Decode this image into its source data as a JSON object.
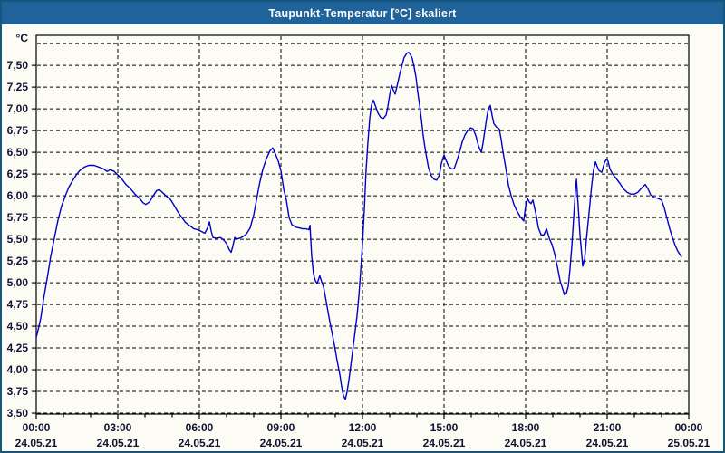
{
  "window": {
    "title": "Taupunkt-Temperatur [°C] skaliert"
  },
  "colors": {
    "titlebar_bg": "#20639a",
    "window_border": "#15567f",
    "window_bg": "#fcfcf4",
    "plot_border": "#000000",
    "gridline": "#000000",
    "axis_text": "#101433",
    "line_color": "#0000c8"
  },
  "chart_data": {
    "type": "line",
    "title": "Taupunkt-Temperatur [°C] skaliert",
    "ylabel": "°C",
    "xlabel": "",
    "legend": "none",
    "grid": "dashed",
    "ylim": [
      3.49,
      7.845
    ],
    "xlim_hours": [
      0,
      24
    ],
    "y_axis": {
      "unit_label": "°C",
      "tick_labels": [
        {
          "value": 3.5,
          "label": "3,50"
        },
        {
          "value": 3.75,
          "label": "3,75"
        },
        {
          "value": 4.0,
          "label": "4,00"
        },
        {
          "value": 4.25,
          "label": "4,25"
        },
        {
          "value": 4.5,
          "label": "4,50"
        },
        {
          "value": 4.75,
          "label": "4,75"
        },
        {
          "value": 5.0,
          "label": "5,00"
        },
        {
          "value": 5.25,
          "label": "5,25"
        },
        {
          "value": 5.5,
          "label": "5,50"
        },
        {
          "value": 5.75,
          "label": "5,75"
        },
        {
          "value": 6.0,
          "label": "6,00"
        },
        {
          "value": 6.25,
          "label": "6,25"
        },
        {
          "value": 6.5,
          "label": "6,50"
        },
        {
          "value": 6.75,
          "label": "6,75"
        },
        {
          "value": 7.0,
          "label": "7,00"
        },
        {
          "value": 7.25,
          "label": "7,25"
        },
        {
          "value": 7.5,
          "label": "7,50"
        }
      ],
      "gridline_values": [
        3.5,
        3.75,
        4.0,
        4.25,
        4.5,
        4.75,
        5.0,
        5.25,
        5.5,
        5.75,
        6.0,
        6.25,
        6.5,
        6.75,
        7.0,
        7.25,
        7.5,
        7.75
      ]
    },
    "x_axis": {
      "minor_tick_every_hours": 1,
      "gridline_hours": [
        3,
        6,
        9,
        12,
        15,
        18,
        21
      ],
      "major_ticks": [
        {
          "hour": 0,
          "time": "00:00",
          "date": "24.05.21"
        },
        {
          "hour": 3,
          "time": "03:00",
          "date": "24.05.21"
        },
        {
          "hour": 6,
          "time": "06:00",
          "date": "24.05.21"
        },
        {
          "hour": 9,
          "time": "09:00",
          "date": "24.05.21"
        },
        {
          "hour": 12,
          "time": "12:00",
          "date": "24.05.21"
        },
        {
          "hour": 15,
          "time": "15:00",
          "date": "24.05.21"
        },
        {
          "hour": 18,
          "time": "18:00",
          "date": "24.05.21"
        },
        {
          "hour": 21,
          "time": "21:00",
          "date": "24.05.21"
        },
        {
          "hour": 24,
          "time": "00:00",
          "date": "25.05.21"
        }
      ]
    },
    "series": [
      {
        "name": "Taupunkt-Temperatur",
        "color": "#0000c8",
        "points": [
          [
            0,
            4.37
          ],
          [
            0.1,
            4.5
          ],
          [
            0.17,
            4.6
          ],
          [
            0.27,
            4.81
          ],
          [
            0.33,
            4.92
          ],
          [
            0.43,
            5.1
          ],
          [
            0.53,
            5.3
          ],
          [
            0.67,
            5.52
          ],
          [
            0.8,
            5.72
          ],
          [
            0.93,
            5.88
          ],
          [
            1.07,
            6.0
          ],
          [
            1.2,
            6.1
          ],
          [
            1.33,
            6.17
          ],
          [
            1.47,
            6.24
          ],
          [
            1.6,
            6.29
          ],
          [
            1.77,
            6.33
          ],
          [
            1.93,
            6.35
          ],
          [
            2.13,
            6.35
          ],
          [
            2.3,
            6.33
          ],
          [
            2.47,
            6.31
          ],
          [
            2.6,
            6.28
          ],
          [
            2.73,
            6.3
          ],
          [
            2.87,
            6.28
          ],
          [
            3.0,
            6.24
          ],
          [
            3.13,
            6.2
          ],
          [
            3.3,
            6.13
          ],
          [
            3.47,
            6.08
          ],
          [
            3.63,
            6.02
          ],
          [
            3.8,
            5.97
          ],
          [
            3.93,
            5.92
          ],
          [
            4.03,
            5.9
          ],
          [
            4.17,
            5.93
          ],
          [
            4.3,
            6.0
          ],
          [
            4.43,
            6.06
          ],
          [
            4.53,
            6.07
          ],
          [
            4.67,
            6.03
          ],
          [
            4.8,
            5.99
          ],
          [
            4.93,
            5.96
          ],
          [
            5.07,
            5.89
          ],
          [
            5.2,
            5.82
          ],
          [
            5.33,
            5.76
          ],
          [
            5.5,
            5.69
          ],
          [
            5.67,
            5.65
          ],
          [
            5.8,
            5.62
          ],
          [
            5.93,
            5.61
          ],
          [
            6.07,
            5.59
          ],
          [
            6.2,
            5.57
          ],
          [
            6.3,
            5.63
          ],
          [
            6.37,
            5.7
          ],
          [
            6.43,
            5.6
          ],
          [
            6.5,
            5.52
          ],
          [
            6.63,
            5.51
          ],
          [
            6.77,
            5.52
          ],
          [
            6.9,
            5.49
          ],
          [
            7.0,
            5.45
          ],
          [
            7.1,
            5.38
          ],
          [
            7.17,
            5.35
          ],
          [
            7.23,
            5.42
          ],
          [
            7.3,
            5.52
          ],
          [
            7.37,
            5.5
          ],
          [
            7.47,
            5.51
          ],
          [
            7.6,
            5.53
          ],
          [
            7.73,
            5.56
          ],
          [
            7.87,
            5.63
          ],
          [
            8.0,
            5.78
          ],
          [
            8.1,
            5.95
          ],
          [
            8.2,
            6.12
          ],
          [
            8.33,
            6.3
          ],
          [
            8.47,
            6.43
          ],
          [
            8.6,
            6.52
          ],
          [
            8.7,
            6.55
          ],
          [
            8.8,
            6.48
          ],
          [
            8.9,
            6.4
          ],
          [
            9.0,
            6.29
          ],
          [
            9.1,
            6.08
          ],
          [
            9.2,
            5.95
          ],
          [
            9.3,
            5.75
          ],
          [
            9.4,
            5.67
          ],
          [
            9.53,
            5.64
          ],
          [
            9.67,
            5.63
          ],
          [
            9.8,
            5.62
          ],
          [
            9.93,
            5.62
          ],
          [
            10.03,
            5.61
          ],
          [
            10.07,
            5.66
          ],
          [
            10.13,
            5.31
          ],
          [
            10.2,
            5.1
          ],
          [
            10.27,
            5.02
          ],
          [
            10.33,
            4.99
          ],
          [
            10.43,
            5.08
          ],
          [
            10.5,
            5.01
          ],
          [
            10.57,
            4.95
          ],
          [
            10.67,
            4.78
          ],
          [
            10.77,
            4.6
          ],
          [
            10.87,
            4.44
          ],
          [
            10.97,
            4.28
          ],
          [
            11.07,
            4.1
          ],
          [
            11.17,
            3.94
          ],
          [
            11.23,
            3.81
          ],
          [
            11.3,
            3.7
          ],
          [
            11.37,
            3.66
          ],
          [
            11.43,
            3.74
          ],
          [
            11.5,
            3.88
          ],
          [
            11.6,
            4.12
          ],
          [
            11.7,
            4.37
          ],
          [
            11.8,
            4.62
          ],
          [
            11.87,
            4.86
          ],
          [
            11.93,
            5.12
          ],
          [
            12.0,
            5.45
          ],
          [
            12.07,
            5.85
          ],
          [
            12.13,
            6.28
          ],
          [
            12.2,
            6.62
          ],
          [
            12.27,
            6.9
          ],
          [
            12.33,
            7.04
          ],
          [
            12.4,
            7.1
          ],
          [
            12.47,
            7.04
          ],
          [
            12.57,
            6.95
          ],
          [
            12.67,
            6.9
          ],
          [
            12.77,
            6.89
          ],
          [
            12.87,
            6.93
          ],
          [
            12.93,
            7.02
          ],
          [
            13.0,
            7.16
          ],
          [
            13.07,
            7.27
          ],
          [
            13.13,
            7.22
          ],
          [
            13.2,
            7.17
          ],
          [
            13.27,
            7.26
          ],
          [
            13.37,
            7.4
          ],
          [
            13.47,
            7.52
          ],
          [
            13.53,
            7.59
          ],
          [
            13.63,
            7.64
          ],
          [
            13.7,
            7.65
          ],
          [
            13.77,
            7.62
          ],
          [
            13.83,
            7.58
          ],
          [
            13.9,
            7.48
          ],
          [
            13.97,
            7.36
          ],
          [
            14.03,
            7.2
          ],
          [
            14.1,
            7.04
          ],
          [
            14.17,
            6.87
          ],
          [
            14.23,
            6.7
          ],
          [
            14.3,
            6.55
          ],
          [
            14.37,
            6.42
          ],
          [
            14.43,
            6.32
          ],
          [
            14.53,
            6.23
          ],
          [
            14.63,
            6.19
          ],
          [
            14.73,
            6.18
          ],
          [
            14.83,
            6.24
          ],
          [
            14.9,
            6.37
          ],
          [
            15.0,
            6.47
          ],
          [
            15.07,
            6.41
          ],
          [
            15.17,
            6.34
          ],
          [
            15.27,
            6.31
          ],
          [
            15.37,
            6.31
          ],
          [
            15.47,
            6.4
          ],
          [
            15.57,
            6.5
          ],
          [
            15.67,
            6.62
          ],
          [
            15.77,
            6.7
          ],
          [
            15.87,
            6.75
          ],
          [
            15.97,
            6.78
          ],
          [
            16.07,
            6.77
          ],
          [
            16.17,
            6.69
          ],
          [
            16.27,
            6.57
          ],
          [
            16.37,
            6.5
          ],
          [
            16.43,
            6.6
          ],
          [
            16.5,
            6.75
          ],
          [
            16.57,
            6.9
          ],
          [
            16.63,
            7.0
          ],
          [
            16.7,
            7.04
          ],
          [
            16.77,
            6.92
          ],
          [
            16.83,
            6.83
          ],
          [
            16.93,
            6.79
          ],
          [
            17.03,
            6.77
          ],
          [
            17.1,
            6.65
          ],
          [
            17.17,
            6.5
          ],
          [
            17.27,
            6.32
          ],
          [
            17.37,
            6.12
          ],
          [
            17.47,
            6.0
          ],
          [
            17.57,
            5.9
          ],
          [
            17.67,
            5.83
          ],
          [
            17.8,
            5.76
          ],
          [
            17.93,
            5.71
          ],
          [
            18.0,
            5.88
          ],
          [
            18.07,
            5.97
          ],
          [
            18.13,
            5.93
          ],
          [
            18.2,
            5.91
          ],
          [
            18.27,
            5.95
          ],
          [
            18.33,
            5.86
          ],
          [
            18.4,
            5.76
          ],
          [
            18.47,
            5.63
          ],
          [
            18.57,
            5.55
          ],
          [
            18.67,
            5.55
          ],
          [
            18.77,
            5.62
          ],
          [
            18.87,
            5.51
          ],
          [
            18.97,
            5.44
          ],
          [
            19.07,
            5.33
          ],
          [
            19.17,
            5.18
          ],
          [
            19.27,
            5.02
          ],
          [
            19.37,
            4.92
          ],
          [
            19.43,
            4.86
          ],
          [
            19.5,
            4.88
          ],
          [
            19.57,
            4.96
          ],
          [
            19.63,
            5.15
          ],
          [
            19.7,
            5.42
          ],
          [
            19.77,
            5.76
          ],
          [
            19.83,
            6.05
          ],
          [
            19.87,
            6.19
          ],
          [
            19.93,
            5.9
          ],
          [
            20.0,
            5.55
          ],
          [
            20.07,
            5.3
          ],
          [
            20.1,
            5.19
          ],
          [
            20.17,
            5.27
          ],
          [
            20.23,
            5.48
          ],
          [
            20.3,
            5.7
          ],
          [
            20.37,
            5.92
          ],
          [
            20.43,
            6.12
          ],
          [
            20.5,
            6.3
          ],
          [
            20.57,
            6.39
          ],
          [
            20.63,
            6.34
          ],
          [
            20.7,
            6.29
          ],
          [
            20.8,
            6.27
          ],
          [
            20.9,
            6.38
          ],
          [
            20.97,
            6.42
          ],
          [
            21.03,
            6.4
          ],
          [
            21.1,
            6.31
          ],
          [
            21.2,
            6.25
          ],
          [
            21.33,
            6.2
          ],
          [
            21.47,
            6.14
          ],
          [
            21.6,
            6.08
          ],
          [
            21.73,
            6.04
          ],
          [
            21.87,
            6.02
          ],
          [
            22.0,
            6.02
          ],
          [
            22.13,
            6.04
          ],
          [
            22.27,
            6.09
          ],
          [
            22.4,
            6.13
          ],
          [
            22.5,
            6.08
          ],
          [
            22.6,
            6.01
          ],
          [
            22.73,
            5.98
          ],
          [
            22.87,
            5.97
          ],
          [
            23.0,
            5.95
          ],
          [
            23.1,
            5.86
          ],
          [
            23.2,
            5.74
          ],
          [
            23.3,
            5.62
          ],
          [
            23.4,
            5.52
          ],
          [
            23.5,
            5.43
          ],
          [
            23.6,
            5.36
          ],
          [
            23.73,
            5.3
          ]
        ]
      }
    ]
  }
}
